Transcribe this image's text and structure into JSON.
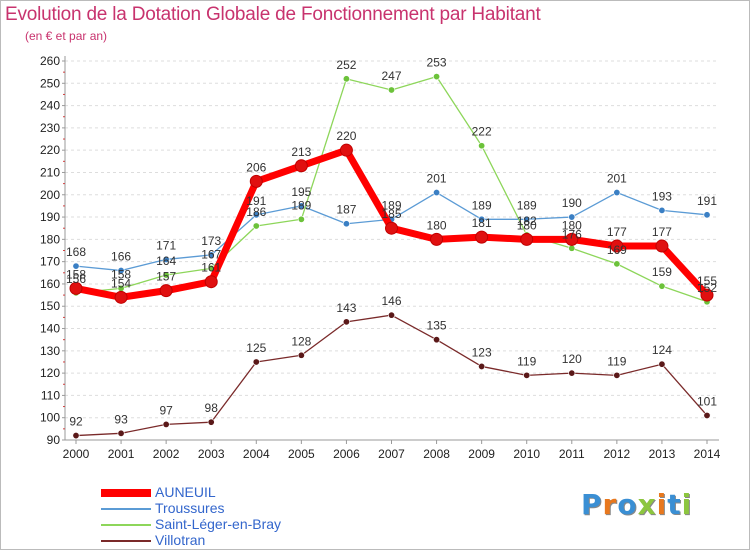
{
  "title": "Evolution de la Dotation Globale de Fonctionnement par Habitant",
  "subtitle": "(en € et par an)",
  "logo": {
    "text": "Proxiti",
    "letters": [
      "P",
      "r",
      "o",
      "x",
      "i",
      "t",
      "i"
    ],
    "colors": [
      "#3a8fd4",
      "#e8781e",
      "#3a8fd4",
      "#8dc63f",
      "#e8781e",
      "#3a8fd4",
      "#8dc63f"
    ]
  },
  "chart_data": {
    "type": "line",
    "title": "Evolution de la Dotation Globale de Fonctionnement par Habitant",
    "ylabel": "(en € et par an)",
    "xlabel": "",
    "categories": [
      "2000",
      "2001",
      "2002",
      "2003",
      "2004",
      "2005",
      "2006",
      "2007",
      "2008",
      "2009",
      "2010",
      "2011",
      "2012",
      "2013",
      "2014"
    ],
    "ylim": [
      90,
      260
    ],
    "yticks": [
      90,
      100,
      110,
      120,
      130,
      140,
      150,
      160,
      170,
      180,
      190,
      200,
      210,
      220,
      230,
      240,
      250,
      260
    ],
    "grid": "horizontal",
    "legend_position": "bottom-left",
    "series": [
      {
        "name": "AUNEUIL",
        "color": "#ff0000",
        "point_color": "#e01010",
        "style": "thick",
        "values": [
          158,
          154,
          157,
          161,
          206,
          213,
          220,
          185,
          180,
          181,
          180,
          180,
          177,
          177,
          155
        ],
        "labels": [
          "158",
          "154",
          "157",
          "161",
          "206",
          "213",
          "220",
          "185",
          "180",
          "181",
          "180",
          "180",
          "177",
          "177",
          "155"
        ]
      },
      {
        "name": "Troussures",
        "color": "#5b9bd5",
        "point_color": "#3a7fc4",
        "style": "thin",
        "values": [
          168,
          166,
          171,
          173,
          191,
          195,
          187,
          189,
          201,
          189,
          189,
          190,
          201,
          193,
          191
        ],
        "labels": [
          "168",
          "166",
          "171",
          "173",
          "191",
          "195",
          "187",
          "189",
          "201",
          "189",
          "189",
          "190",
          "201",
          "193",
          "191"
        ]
      },
      {
        "name": "Saint-Léger-en-Bray",
        "color": "#8dd65a",
        "point_color": "#6cc23a",
        "style": "thin",
        "values": [
          156,
          158,
          164,
          167,
          186,
          189,
          252,
          247,
          253,
          222,
          182,
          176,
          169,
          159,
          152
        ],
        "labels": [
          "156",
          "158",
          "164",
          "167",
          "186",
          "189",
          "252",
          "247",
          "253",
          "222",
          "182",
          "176",
          "169",
          "159",
          "152"
        ]
      },
      {
        "name": "Villotran",
        "color": "#7a2a2a",
        "point_color": "#5a1818",
        "style": "thin",
        "values": [
          92,
          93,
          97,
          98,
          125,
          128,
          143,
          146,
          135,
          123,
          119,
          120,
          119,
          124,
          101
        ],
        "labels": [
          "92",
          "93",
          "97",
          "98",
          "125",
          "128",
          "143",
          "146",
          "135",
          "123",
          "119",
          "120",
          "119",
          "124",
          "101"
        ]
      }
    ]
  }
}
